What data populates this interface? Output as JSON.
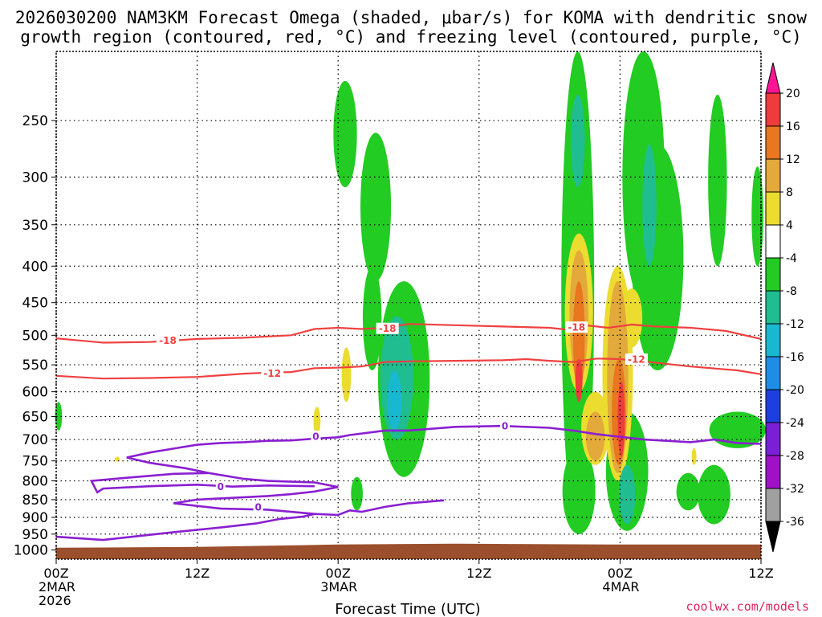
{
  "title": {
    "line1": "2026030200 NAM3KM Forecast Omega (shaded, μbar/s) for KOMA with dendritic snow",
    "line2": "growth region (contoured, red, °C) and freezing level (contoured, purple, °C)"
  },
  "credit": "coolwx.com/models",
  "chart_data": {
    "type": "heatmap",
    "xlabel": "Forecast Time (UTC)",
    "ylabel": "",
    "y_scale": "log-pressure (inverted)",
    "ylim": [
      1030,
      200
    ],
    "xlim_hours": [
      0,
      60
    ],
    "grid": true,
    "y_ticks": [
      250,
      300,
      350,
      400,
      450,
      500,
      550,
      600,
      650,
      700,
      750,
      800,
      850,
      900,
      950,
      1000
    ],
    "x_ticks": [
      {
        "hour": 0,
        "label": "00Z",
        "sub1": "2MAR",
        "sub2": "2026"
      },
      {
        "hour": 12,
        "label": "12Z",
        "sub1": "",
        "sub2": ""
      },
      {
        "hour": 24,
        "label": "00Z",
        "sub1": "3MAR",
        "sub2": ""
      },
      {
        "hour": 36,
        "label": "12Z",
        "sub1": "",
        "sub2": ""
      },
      {
        "hour": 48,
        "label": "00Z",
        "sub1": "4MAR",
        "sub2": ""
      },
      {
        "hour": 60,
        "label": "12Z",
        "sub1": "",
        "sub2": ""
      }
    ],
    "colorbar": {
      "labels": [
        "20",
        "16",
        "12",
        "8",
        "4",
        "-4",
        "-8",
        "-12",
        "-16",
        "-20",
        "-24",
        "-28",
        "-32",
        "-36"
      ],
      "colors": [
        "#ff1493",
        "#ef3b3b",
        "#e8771f",
        "#e3a93a",
        "#ecdc30",
        "#ffffff",
        "#22cc22",
        "#1fbd8f",
        "#19b8d1",
        "#1e8de8",
        "#1d3fe0",
        "#7a1fd6",
        "#a010c8",
        "#a0a0a0",
        "#000000"
      ]
    },
    "contours": [
      {
        "level": -18,
        "color": "#ef4040",
        "label": "-18",
        "points": [
          [
            0,
            505
          ],
          [
            4,
            512
          ],
          [
            8,
            511
          ],
          [
            12,
            506
          ],
          [
            16,
            504
          ],
          [
            20,
            500
          ],
          [
            22,
            490
          ],
          [
            24,
            488
          ],
          [
            26,
            490
          ],
          [
            28,
            488
          ],
          [
            30,
            482
          ],
          [
            34,
            484
          ],
          [
            38,
            486
          ],
          [
            42,
            488
          ],
          [
            44,
            492
          ],
          [
            45,
            484
          ],
          [
            47,
            488
          ],
          [
            49,
            483
          ],
          [
            51,
            486
          ],
          [
            54,
            488
          ],
          [
            57,
            493
          ],
          [
            60,
            506
          ]
        ],
        "label_at": [
          [
            9.5,
            508
          ],
          [
            28.2,
            489
          ],
          [
            44.3,
            487
          ]
        ]
      },
      {
        "level": -12,
        "color": "#ef4040",
        "label": "-12",
        "points": [
          [
            0,
            570
          ],
          [
            4,
            575
          ],
          [
            8,
            574
          ],
          [
            12,
            572
          ],
          [
            16,
            566
          ],
          [
            18,
            564
          ],
          [
            20,
            563
          ],
          [
            22,
            556
          ],
          [
            24,
            555
          ],
          [
            26,
            553
          ],
          [
            28,
            545
          ],
          [
            30,
            544
          ],
          [
            34,
            543
          ],
          [
            38,
            542
          ],
          [
            40,
            540
          ],
          [
            42,
            543
          ],
          [
            44,
            545
          ],
          [
            46,
            539
          ],
          [
            48,
            540
          ],
          [
            50,
            544
          ],
          [
            54,
            553
          ],
          [
            58,
            560
          ],
          [
            60,
            567
          ]
        ],
        "label_at": [
          [
            18.4,
            565
          ],
          [
            49.4,
            540
          ]
        ]
      },
      {
        "level": 0,
        "color": "#8a1fd1",
        "label": "0",
        "points": [
          [
            0,
            958
          ],
          [
            4,
            968
          ],
          [
            10,
            944
          ],
          [
            14,
            930
          ],
          [
            17,
            918
          ],
          [
            19,
            905
          ],
          [
            21,
            898
          ],
          [
            22,
            890
          ],
          [
            24,
            893
          ],
          [
            25,
            880
          ],
          [
            26,
            884
          ],
          [
            28,
            870
          ],
          [
            30,
            860
          ],
          [
            33,
            852
          ]
        ],
        "label_at": [],
        "sub": [
          [
            [
              10.2,
              720
            ],
            [
              12,
              712
            ],
            [
              14,
              708
            ],
            [
              16,
              706
            ],
            [
              18,
              703
            ],
            [
              20,
              702
            ],
            [
              22,
              698
            ],
            [
              24,
              695
            ],
            [
              25,
              690
            ],
            [
              28,
              680
            ],
            [
              30,
              680
            ],
            [
              34,
              672
            ],
            [
              38,
              670
            ],
            [
              42,
              674
            ],
            [
              44,
              680
            ],
            [
              46,
              688
            ],
            [
              48,
              694
            ],
            [
              50,
              700
            ],
            [
              52,
              703
            ],
            [
              54,
              706
            ],
            [
              56,
              700
            ],
            [
              58,
              708
            ],
            [
              60,
              710
            ]
          ],
          [
            [
              10.2,
              720
            ],
            [
              8,
              730
            ],
            [
              6,
              742
            ],
            [
              8,
              755
            ],
            [
              11,
              768
            ],
            [
              13,
              780
            ],
            [
              10,
              782
            ],
            [
              6,
              792
            ],
            [
              3,
              800
            ],
            [
              3.5,
              830
            ],
            [
              4,
              820
            ],
            [
              8,
              814
            ],
            [
              12,
              810
            ],
            [
              15,
              815
            ],
            [
              18,
              812
            ],
            [
              22,
              814
            ]
          ],
          [
            [
              13,
              780
            ],
            [
              16,
              795
            ],
            [
              18,
              800
            ],
            [
              22,
              804
            ],
            [
              24,
              816
            ],
            [
              22,
              828
            ],
            [
              20,
              835
            ],
            [
              18,
              840
            ],
            [
              15,
              845
            ],
            [
              12,
              850
            ],
            [
              10,
              860
            ],
            [
              14,
              875
            ],
            [
              18,
              878
            ],
            [
              20,
              884
            ],
            [
              22,
              890
            ]
          ]
        ]
      }
    ],
    "contour_labels": [
      {
        "text": "-18",
        "hour": 9.5,
        "p": 508
      },
      {
        "text": "-18",
        "hour": 28.2,
        "p": 489
      },
      {
        "text": "-18",
        "hour": 44.3,
        "p": 487
      },
      {
        "text": "-12",
        "hour": 18.4,
        "p": 565
      },
      {
        "text": "-12",
        "hour": 49.4,
        "p": 540
      },
      {
        "text": "0",
        "hour": 22.1,
        "p": 693
      },
      {
        "text": "0",
        "hour": 38.2,
        "p": 670
      },
      {
        "text": "0",
        "hour": 14.0,
        "p": 815
      },
      {
        "text": "0",
        "hour": 17.2,
        "p": 870
      }
    ],
    "omega_regions": [
      {
        "value": -6,
        "center": [
          24.6,
          268
        ],
        "rx": 1.0,
        "ry_p": [
          220,
          310
        ]
      },
      {
        "value": -6,
        "center": [
          27.2,
          340
        ],
        "rx": 1.3,
        "ry_p": [
          260,
          420
        ]
      },
      {
        "value": -6,
        "center": [
          29.6,
          600
        ],
        "rx": 2.2,
        "ry_p": [
          420,
          790
        ]
      },
      {
        "value": -10,
        "center": [
          29.0,
          590
        ],
        "rx": 1.4,
        "ry_p": [
          470,
          700
        ]
      },
      {
        "value": -14,
        "center": [
          28.8,
          620
        ],
        "rx": 0.6,
        "ry_p": [
          560,
          680
        ]
      },
      {
        "value": -6,
        "center": [
          26.9,
          490
        ],
        "rx": 0.8,
        "ry_p": [
          400,
          560
        ]
      },
      {
        "value": -6,
        "center": [
          44.4,
          300
        ],
        "rx": 1.4,
        "ry_p": [
          190,
          940
        ]
      },
      {
        "value": -10,
        "center": [
          44.4,
          260
        ],
        "rx": 0.6,
        "ry_p": [
          230,
          310
        ]
      },
      {
        "value": -6,
        "center": [
          50.0,
          200
        ],
        "rx": 1.8,
        "ry_p": [
          190,
          450
        ]
      },
      {
        "value": -6,
        "center": [
          51.2,
          420
        ],
        "rx": 2.2,
        "ry_p": [
          270,
          560
        ]
      },
      {
        "value": -10,
        "center": [
          50.5,
          320
        ],
        "rx": 0.6,
        "ry_p": [
          270,
          400
        ]
      },
      {
        "value": -6,
        "center": [
          48.6,
          760
        ],
        "rx": 1.8,
        "ry_p": [
          640,
          940
        ]
      },
      {
        "value": -10,
        "center": [
          48.6,
          820
        ],
        "rx": 0.7,
        "ry_p": [
          760,
          920
        ]
      },
      {
        "value": -6,
        "center": [
          44.5,
          780
        ],
        "rx": 1.4,
        "ry_p": [
          720,
          950
        ]
      },
      {
        "value": -6,
        "center": [
          56.3,
          300
        ],
        "rx": 0.8,
        "ry_p": [
          230,
          400
        ]
      },
      {
        "value": -6,
        "center": [
          59.7,
          340
        ],
        "rx": 0.5,
        "ry_p": [
          290,
          400
        ]
      },
      {
        "value": -6,
        "center": [
          56.0,
          830
        ],
        "rx": 1.4,
        "ry_p": [
          760,
          920
        ]
      },
      {
        "value": -6,
        "center": [
          58.0,
          680
        ],
        "rx": 2.4,
        "ry_p": [
          640,
          720
        ]
      },
      {
        "value": -6,
        "center": [
          53.8,
          800
        ],
        "rx": 1.0,
        "ry_p": [
          780,
          880
        ]
      },
      {
        "value": -6,
        "center": [
          25.6,
          830
        ],
        "rx": 0.5,
        "ry_p": [
          790,
          880
        ]
      },
      {
        "value": -6,
        "center": [
          0.2,
          655
        ],
        "rx": 0.3,
        "ry_p": [
          620,
          680
        ]
      },
      {
        "value": 6,
        "center": [
          44.5,
          470
        ],
        "rx": 1.2,
        "ry_p": [
          360,
          600
        ]
      },
      {
        "value": 10,
        "center": [
          44.5,
          480
        ],
        "rx": 0.8,
        "ry_p": [
          380,
          580
        ]
      },
      {
        "value": 14,
        "center": [
          44.5,
          520
        ],
        "rx": 0.5,
        "ry_p": [
          420,
          600
        ]
      },
      {
        "value": 18,
        "center": [
          44.5,
          580
        ],
        "rx": 0.3,
        "ry_p": [
          540,
          620
        ]
      },
      {
        "value": 6,
        "center": [
          45.9,
          690
        ],
        "rx": 1.2,
        "ry_p": [
          600,
          760
        ]
      },
      {
        "value": 10,
        "center": [
          45.9,
          700
        ],
        "rx": 0.8,
        "ry_p": [
          640,
          750
        ]
      },
      {
        "value": 6,
        "center": [
          47.8,
          560
        ],
        "rx": 1.3,
        "ry_p": [
          400,
          800
        ]
      },
      {
        "value": 10,
        "center": [
          47.8,
          560
        ],
        "rx": 0.9,
        "ry_p": [
          420,
          780
        ]
      },
      {
        "value": 14,
        "center": [
          47.9,
          600
        ],
        "rx": 0.6,
        "ry_p": [
          540,
          760
        ]
      },
      {
        "value": 18,
        "center": [
          48.1,
          640
        ],
        "rx": 0.3,
        "ry_p": [
          580,
          740
        ]
      },
      {
        "value": 6,
        "center": [
          49.0,
          470
        ],
        "rx": 0.9,
        "ry_p": [
          430,
          520
        ]
      },
      {
        "value": 6,
        "center": [
          24.7,
          560
        ],
        "rx": 0.4,
        "ry_p": [
          520,
          620
        ]
      },
      {
        "value": 6,
        "center": [
          22.2,
          660
        ],
        "rx": 0.3,
        "ry_p": [
          630,
          690
        ]
      },
      {
        "value": 6,
        "center": [
          5.2,
          745
        ],
        "rx": 0.2,
        "ry_p": [
          740,
          752
        ]
      },
      {
        "value": 6,
        "center": [
          54.3,
          735
        ],
        "rx": 0.2,
        "ry_p": [
          720,
          760
        ]
      }
    ],
    "terrain": {
      "color": "#9b4f2c",
      "p": 985
    }
  }
}
